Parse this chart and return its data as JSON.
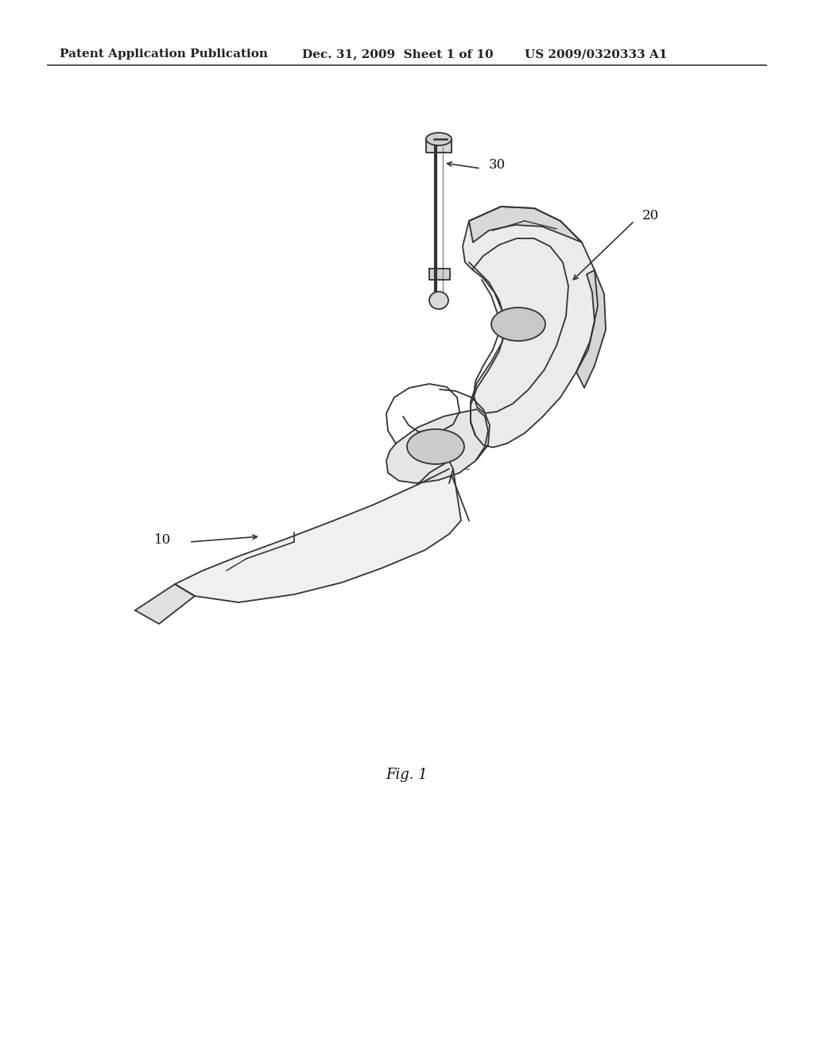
{
  "background_color": "#ffffff",
  "header_left": "Patent Application Publication",
  "header_center": "Dec. 31, 2009  Sheet 1 of 10",
  "header_right": "US 2009/0320333 A1",
  "figure_label": "Fig. 1",
  "label_10": "10",
  "label_20": "20",
  "label_30": "30",
  "header_fontsize": 11,
  "figure_label_fontsize": 13,
  "annotation_fontsize": 12
}
